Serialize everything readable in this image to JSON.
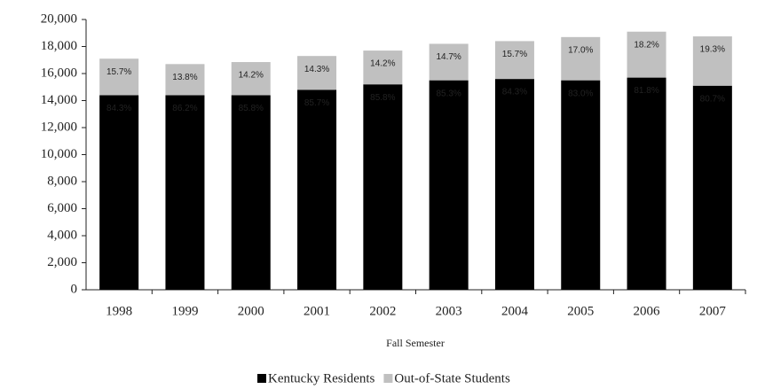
{
  "chart_data": {
    "type": "stacked_bar",
    "x_label": "Fall Semester",
    "categories": [
      "1998",
      "1999",
      "2000",
      "2001",
      "2002",
      "2003",
      "2004",
      "2005",
      "2006",
      "2007"
    ],
    "series": [
      {
        "name": "Kentucky Residents",
        "color": "#000000",
        "values": [
          14400,
          14400,
          14400,
          14800,
          15200,
          15500,
          15600,
          15500,
          15700,
          15100
        ],
        "percent_labels": [
          "84.3%",
          "86.2%",
          "85.8%",
          "85.7%",
          "85.8%",
          "85.3%",
          "84.3%",
          "83.0%",
          "81.8%",
          "80.7%"
        ]
      },
      {
        "name": "Out-of-State Students",
        "color": "#c0c0c0",
        "values": [
          2700,
          2300,
          2450,
          2500,
          2500,
          2700,
          2800,
          3200,
          3400,
          3650
        ],
        "percent_labels": [
          "15.7%",
          "13.8%",
          "14.2%",
          "14.3%",
          "14.2%",
          "14.7%",
          "15.7%",
          "17.0%",
          "18.2%",
          "19.3%"
        ]
      }
    ],
    "ylim": [
      0,
      20000
    ],
    "yticks": [
      0,
      {
        "value": 2000,
        "label": "2,000"
      },
      {
        "value": 4000,
        "label": "4,000"
      },
      {
        "value": 6000,
        "label": "6,000"
      },
      {
        "value": 8000,
        "label": "8,000"
      },
      {
        "value": 10000,
        "label": "10,000"
      },
      {
        "value": 12000,
        "label": "12,000"
      },
      {
        "value": 14000,
        "label": "14,000"
      },
      {
        "value": 16000,
        "label": "16,000"
      },
      {
        "value": 18000,
        "label": "18,000"
      },
      {
        "value": 20000,
        "label": "20,000"
      }
    ]
  }
}
